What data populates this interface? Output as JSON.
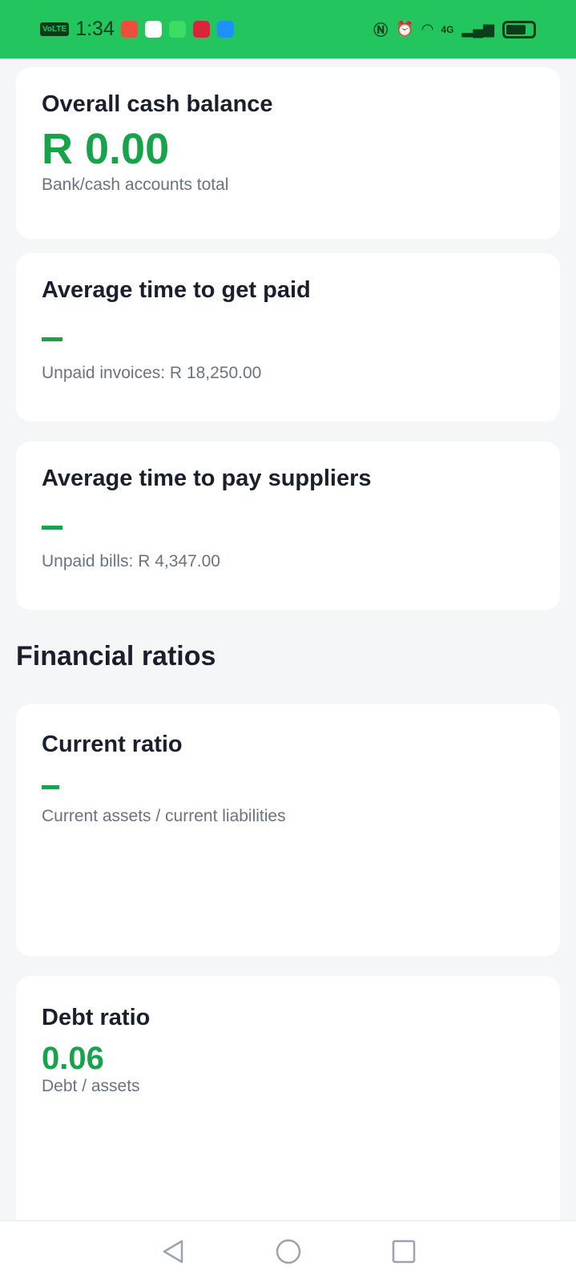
{
  "status_bar": {
    "network": "VoLTE",
    "time": "1:34",
    "signal": "4G"
  },
  "cards": [
    {
      "title": "Overall cash balance",
      "value": "R 0.00",
      "subtitle": "Bank/cash accounts total"
    },
    {
      "title": "Average time to get paid",
      "value": "–",
      "subtitle": "Unpaid invoices: R 18,250.00"
    },
    {
      "title": "Average time to pay suppliers",
      "value": "–",
      "subtitle": "Unpaid bills: R 4,347.00"
    }
  ],
  "section_title": "Financial ratios",
  "ratios": [
    {
      "title": "Current ratio",
      "value": "–",
      "subtitle": "Current assets / current liabilities"
    },
    {
      "title": "Debt ratio",
      "value": "0.06",
      "subtitle": "Debt / assets"
    }
  ],
  "colors": {
    "status_bar": "#22c55e",
    "accent": "#16a34a"
  }
}
